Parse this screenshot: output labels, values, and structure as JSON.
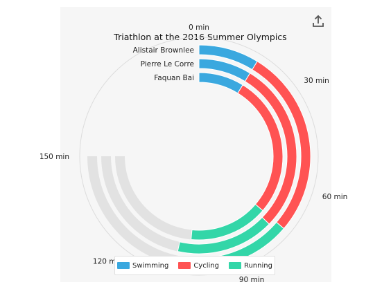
{
  "share_icon": "upload-share-icon",
  "chart_data": {
    "type": "radial-stacked-bar",
    "title": "Triathlon at the 2016 Summer Olympics",
    "categories": [
      "Alistair Brownlee",
      "Pierre Le Corre",
      "Faquan Bai"
    ],
    "series": [
      {
        "name": "Swimming",
        "color": "#3aa8df",
        "values": [
          17.5,
          17.5,
          17.5
        ]
      },
      {
        "name": "Cycling",
        "color": "#ff5353",
        "values": [
          55,
          57,
          55
        ]
      },
      {
        "name": "Running",
        "color": "#33d6a8",
        "values": [
          30.5,
          32.5,
          30.5
        ]
      }
    ],
    "axis": {
      "range": [
        0,
        150
      ],
      "ticks": [
        0,
        30,
        60,
        90,
        120,
        150
      ],
      "tick_labels": [
        "0 min",
        "30 min",
        "60 min",
        "90 min",
        "120 min",
        "150 min"
      ]
    },
    "background_track_color": "#e2e2e2"
  }
}
